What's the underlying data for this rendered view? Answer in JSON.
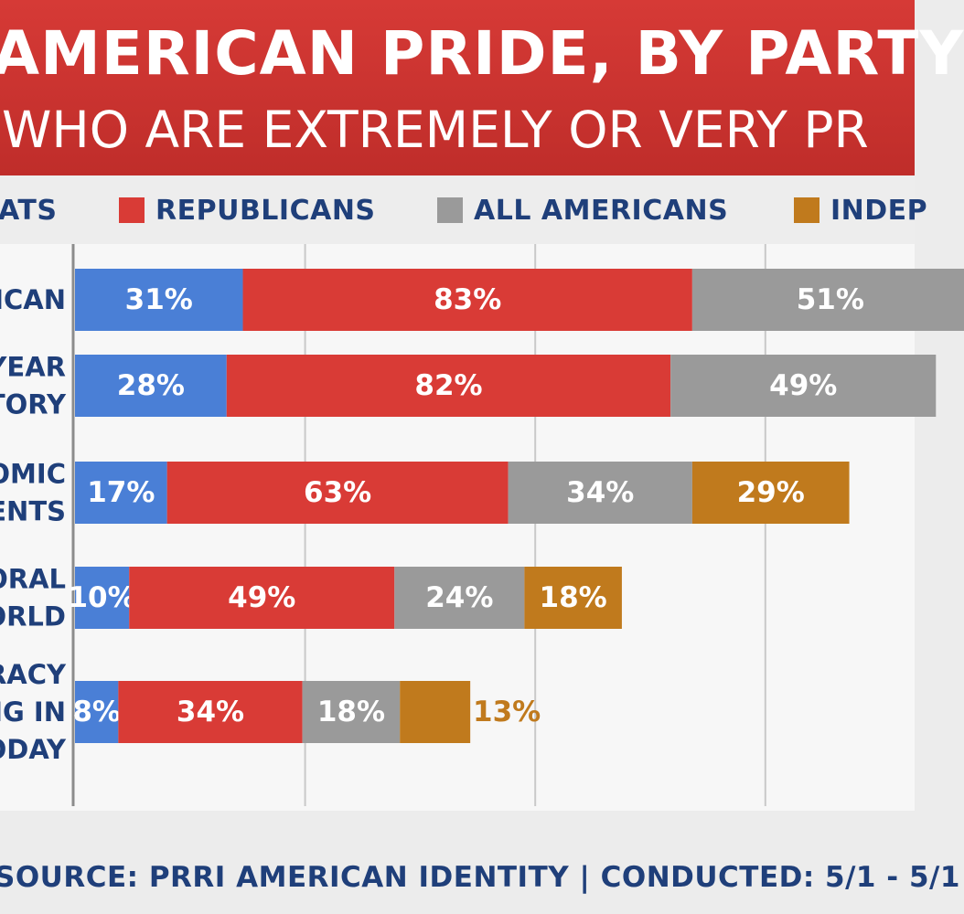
{
  "header": {
    "title": "AMERICAN PRIDE, BY PARTY",
    "subtitle": "WHO ARE EXTREMELY OR VERY PR"
  },
  "legend": [
    {
      "label": "ATS",
      "color": "#4a7fd6"
    },
    {
      "label": "REPUBLICANS",
      "color": "#d93b36"
    },
    {
      "label": "ALL AMERICANS",
      "color": "#9a9a9a"
    },
    {
      "label": "INDEP",
      "color": "#c07a1d"
    }
  ],
  "footer": {
    "source": "SOURCE: PRRI AMERICAN IDENTITY | CONDUCTED: 5/1 - 5/1"
  },
  "chart_data": {
    "type": "bar",
    "orientation": "horizontal",
    "stacked": true,
    "categories": [
      [
        "ICAN"
      ],
      [
        "YEAR",
        "TORY"
      ],
      [
        "OMIC",
        "ENTS"
      ],
      [
        "ORAL",
        "ORLD"
      ],
      [
        "RACY",
        "NG IN",
        "ODAY"
      ]
    ],
    "series": [
      {
        "color": "#4a7fd6",
        "values": [
          31,
          28,
          17,
          10,
          8
        ]
      },
      {
        "name": "REPUBLICANS",
        "color": "#d93b36",
        "values": [
          83,
          82,
          63,
          49,
          34
        ]
      },
      {
        "name": "ALL AMERICANS",
        "color": "#9a9a9a",
        "values": [
          51,
          49,
          34,
          24,
          18
        ]
      },
      {
        "color": "#c07a1d",
        "values": [
          null,
          null,
          29,
          18,
          13
        ]
      }
    ],
    "value_labels": [
      [
        "31%",
        "83%",
        "51%",
        ""
      ],
      [
        "28%",
        "82%",
        "49%",
        ""
      ],
      [
        "17%",
        "63%",
        "34%",
        "29%"
      ],
      [
        "10%",
        "49%",
        "24%",
        "18%"
      ],
      [
        "8%",
        "34%",
        "18%",
        "13%"
      ]
    ],
    "grid": true,
    "legend_position": "top"
  }
}
